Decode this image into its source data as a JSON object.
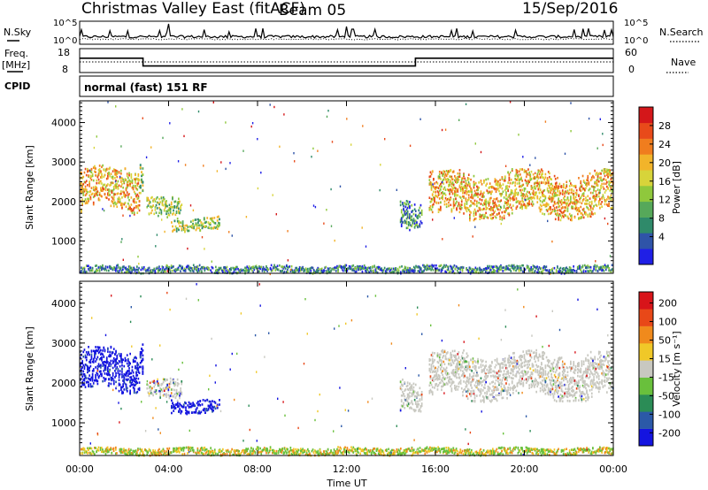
{
  "header": {
    "title": "Christmas Valley East (fitACF)",
    "beam": "Beam 05",
    "date": "15/Sep/2016"
  },
  "panels": {
    "nsky_label": "N.Sky",
    "nsky_left_ticks": [
      "10^5",
      "10^0"
    ],
    "nsky_right_ticks": [
      "10^5",
      "10^0"
    ],
    "nsearch_label": "N.Search",
    "freq_label": "Freq.",
    "freq_unit": "[MHz]",
    "freq_ticks": [
      "18",
      "8"
    ],
    "nave_ticks": [
      "60",
      "0"
    ],
    "nave_label": "Nave",
    "cpid_label": "CPID",
    "cpid_text": "normal (fast) 151 RF"
  },
  "chart_data": {
    "type": "heatmap",
    "xlabel": "Time UT",
    "x_ticks": [
      "00:00",
      "04:00",
      "08:00",
      "12:00",
      "16:00",
      "20:00",
      "00:00"
    ],
    "xlim_hours": [
      0,
      24
    ],
    "ylabel": "Slant Range [km]",
    "y_ticks": [
      1000,
      2000,
      3000,
      4000
    ],
    "ylim_km": [
      180,
      4550
    ],
    "freq_series": [
      {
        "from_h": 0,
        "to_h": 2.85,
        "value": 14
      },
      {
        "from_h": 2.85,
        "to_h": 15.1,
        "value": 10
      },
      {
        "from_h": 15.1,
        "to_h": 24,
        "value": 14
      }
    ],
    "power": {
      "colorbar_label": "Power [dB]",
      "colorbar_ticks": [
        "28",
        "24",
        "20",
        "16",
        "12",
        "8",
        "4"
      ],
      "colors": [
        "#1f1fe6",
        "#2f54a8",
        "#2f8a6a",
        "#56a85a",
        "#8fc83c",
        "#d7d43a",
        "#f2b42a",
        "#f07d1e",
        "#e84a1a",
        "#d4171a"
      ]
    },
    "velocity": {
      "colorbar_label": "Velocity [m s⁻¹]",
      "colorbar_ticks": [
        "200",
        "100",
        "50",
        "15",
        "-15",
        "-50",
        "-100",
        "-200"
      ],
      "colors": [
        "#1414e0",
        "#2b59a8",
        "#2b8c56",
        "#69c03c",
        "#c8c8c0",
        "#f0c828",
        "#f08a1c",
        "#e84818",
        "#d8141a"
      ]
    },
    "echo_regions": [
      {
        "t": [
          0,
          2.7
        ],
        "r": [
          1700,
          2950
        ],
        "power": "high",
        "vel": "toward"
      },
      {
        "t": [
          2.7,
          2.85
        ],
        "r": [
          2200,
          3150
        ],
        "power": "mid",
        "vel": "toward"
      },
      {
        "t": [
          3.0,
          4.6
        ],
        "r": [
          1550,
          2150
        ],
        "power": "mid",
        "vel": "mixed"
      },
      {
        "t": [
          4.1,
          6.3
        ],
        "r": [
          1250,
          1650
        ],
        "power": "mid",
        "vel": "toward"
      },
      {
        "t": [
          14.4,
          15.4
        ],
        "r": [
          1300,
          2250
        ],
        "power": "low",
        "vel": "zero"
      },
      {
        "t": [
          15.7,
          24
        ],
        "r": [
          1550,
          2850
        ],
        "power": "high",
        "vel": "zero"
      },
      {
        "t": [
          0,
          24
        ],
        "r": [
          200,
          420
        ],
        "power": "low",
        "vel": "away"
      }
    ]
  }
}
